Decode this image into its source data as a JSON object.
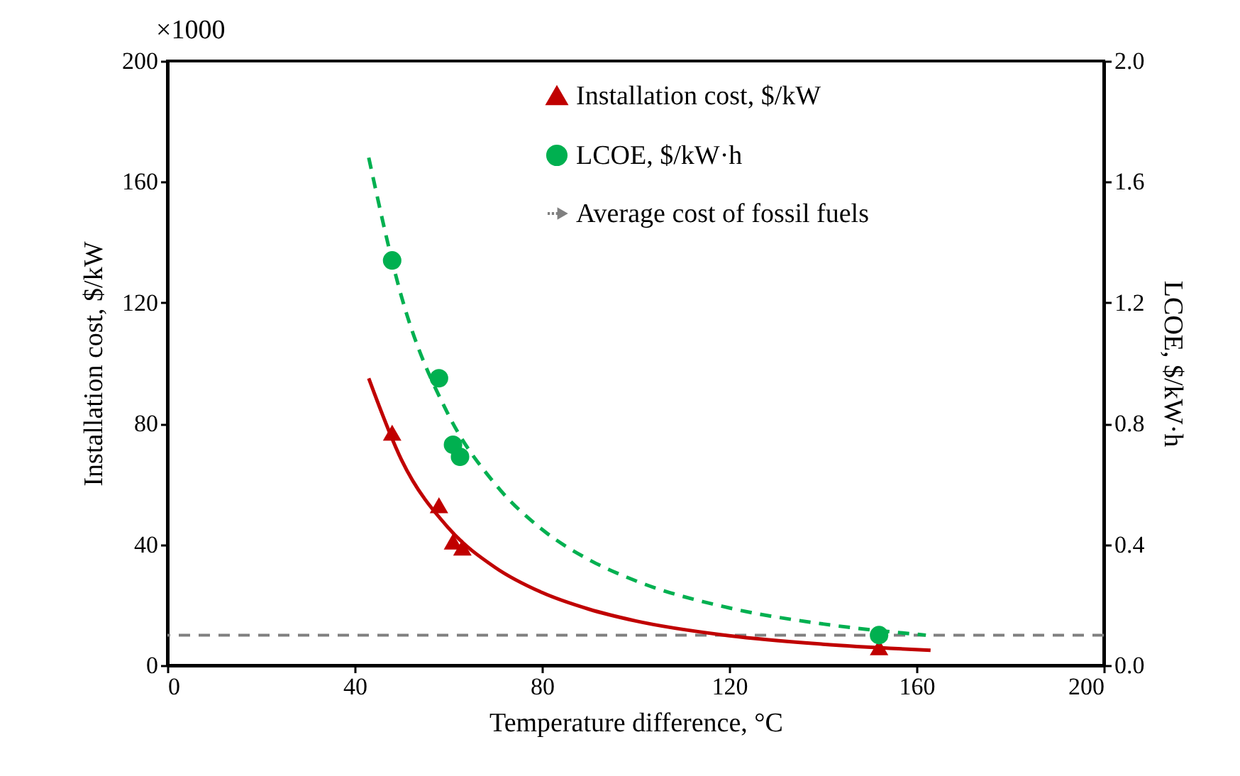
{
  "chart_data": {
    "type": "scatter",
    "xlabel": "Temperature difference, °C",
    "ylabel": "Installation cost, $/kW",
    "y2label": "LCOE, $/kW·h",
    "annotations": [
      "×1000"
    ],
    "xlim": [
      0,
      200
    ],
    "xticks": [
      0,
      40,
      80,
      120,
      160,
      200
    ],
    "ylim": [
      0,
      200
    ],
    "yticks": [
      0,
      40,
      80,
      120,
      160,
      200
    ],
    "y2lim": [
      0,
      2
    ],
    "y2ticks": [
      {
        "value": 0,
        "label": "0.0"
      },
      {
        "value": 0.4,
        "label": "0.4"
      },
      {
        "value": 0.8,
        "label": "0.8"
      },
      {
        "value": 1.2,
        "label": "1.2"
      },
      {
        "value": 1.6,
        "label": "1.6"
      },
      {
        "value": 2,
        "label": "2.0"
      }
    ],
    "grid": false,
    "legend": "top right",
    "series": [
      {
        "name": "Installation cost, $/kW",
        "marker": "triangle",
        "color": "#c00000",
        "x": [
          48,
          58,
          61,
          63,
          152
        ],
        "values": [
          77,
          53,
          41,
          39,
          6
        ]
      },
      {
        "name": "LCOE, $/kW·h",
        "marker": "circle",
        "color": "#00b050",
        "axis": "y2",
        "x": [
          48,
          58,
          61,
          62.5,
          152
        ],
        "values": [
          1.34,
          0.95,
          0.73,
          0.69,
          0.1
        ]
      },
      {
        "type": "line",
        "color": "#c00000",
        "line_style": "solid",
        "x": [
          43,
          50,
          60,
          70,
          80,
          90,
          100,
          120,
          140,
          163
        ],
        "values": [
          95,
          68,
          45.5,
          32.4,
          24.1,
          18.6,
          14.7,
          9.8,
          7,
          5
        ]
      },
      {
        "type": "line",
        "color": "#00b050",
        "line_style": "dashed",
        "axis": "y2",
        "x": [
          43,
          50,
          60,
          70,
          80,
          90,
          100,
          120,
          140,
          162
        ],
        "values": [
          1.68,
          1.22,
          0.83,
          0.6,
          0.45,
          0.35,
          0.28,
          0.19,
          0.137,
          0.1
        ]
      }
    ],
    "ref_lines": [
      {
        "axis": "y",
        "value": 10,
        "label": "Average cost of fossil fuels",
        "color": "#808080",
        "line_style": "dashed"
      }
    ]
  }
}
